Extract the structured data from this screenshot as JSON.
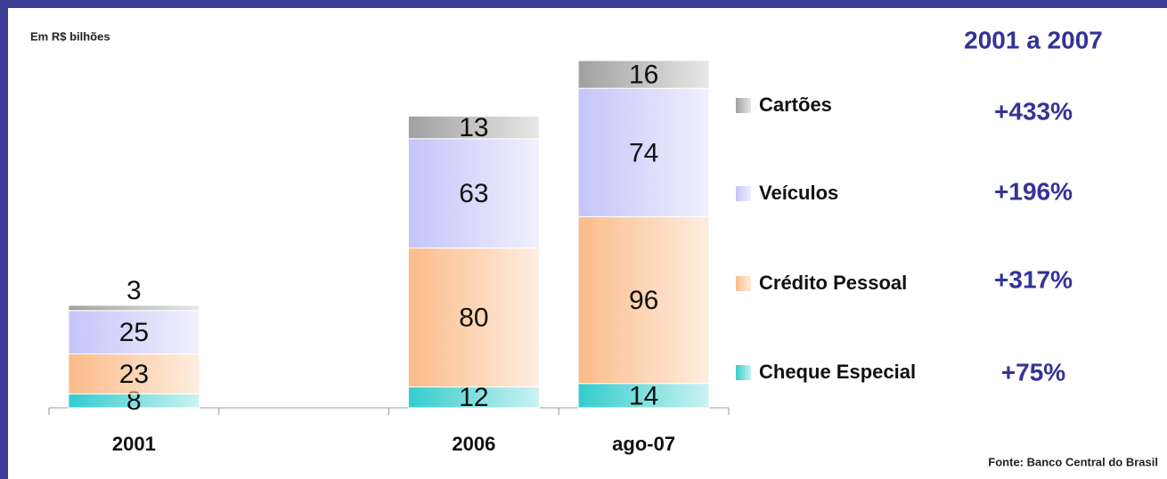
{
  "chart_data": {
    "type": "bar",
    "stacked": true,
    "subtitle": "Em R$ bilhões",
    "title": "2001 a 2007",
    "source": "Fonte: Banco Central do Brasil",
    "categories": [
      "2001",
      null,
      "2006",
      "ago-07"
    ],
    "ylim": [
      0,
      200
    ],
    "series": [
      {
        "name": "Cheque Especial",
        "color": "#33cccc",
        "growth": "+75%",
        "values": [
          8,
          null,
          12,
          14
        ]
      },
      {
        "name": "Crédito Pessoal",
        "color": "#fbbb88",
        "growth": "+317%",
        "values": [
          23,
          null,
          80,
          96
        ]
      },
      {
        "name": "Veículos",
        "color": "#c4c4fa",
        "growth": "+196%",
        "values": [
          25,
          null,
          63,
          74
        ]
      },
      {
        "name": "Cartões",
        "color": "#a0a0a0",
        "growth": "+433%",
        "values": [
          3,
          null,
          13,
          16
        ]
      }
    ]
  }
}
